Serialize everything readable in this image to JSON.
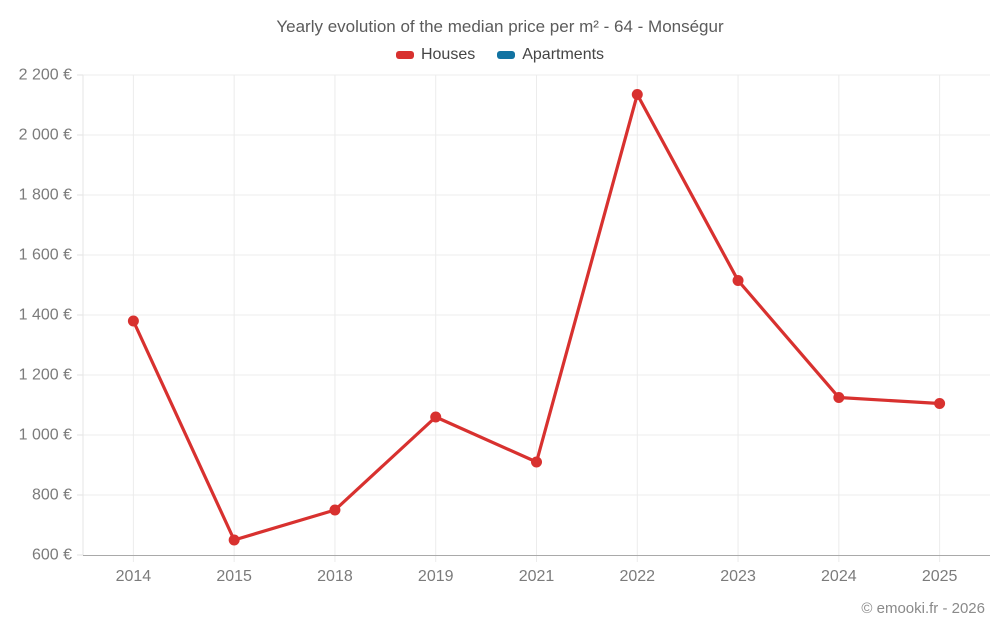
{
  "title": "Yearly evolution of the median price per m² - 64 - Monségur",
  "legend": [
    {
      "label": "Houses",
      "color": "#d8312f"
    },
    {
      "label": "Apartments",
      "color": "#1273a2"
    }
  ],
  "footer": "© emooki.fr - 2026",
  "chart_data": {
    "type": "line",
    "title": "Yearly evolution of the median price per m² - 64 - Monségur",
    "categories": [
      "2014",
      "2015",
      "2018",
      "2019",
      "2021",
      "2022",
      "2023",
      "2024",
      "2025"
    ],
    "series": [
      {
        "name": "Houses",
        "color": "#d8312f",
        "values": [
          1380,
          650,
          750,
          1060,
          910,
          2135,
          1515,
          1125,
          1105
        ]
      },
      {
        "name": "Apartments",
        "color": "#1273a2",
        "values": []
      }
    ],
    "xlabel": "",
    "ylabel": "",
    "ylim": [
      600,
      2200
    ],
    "ytick_step": 200,
    "ytick_suffix": " €",
    "grid": true,
    "legend_position": "top",
    "colors": {
      "grid_line": "#ececec",
      "axis_line": "#a9a9a9",
      "left_axis_line": "#e6e6e6",
      "tick_mark": "#e0e0e0",
      "axis_label": "#7b7b7b"
    }
  }
}
